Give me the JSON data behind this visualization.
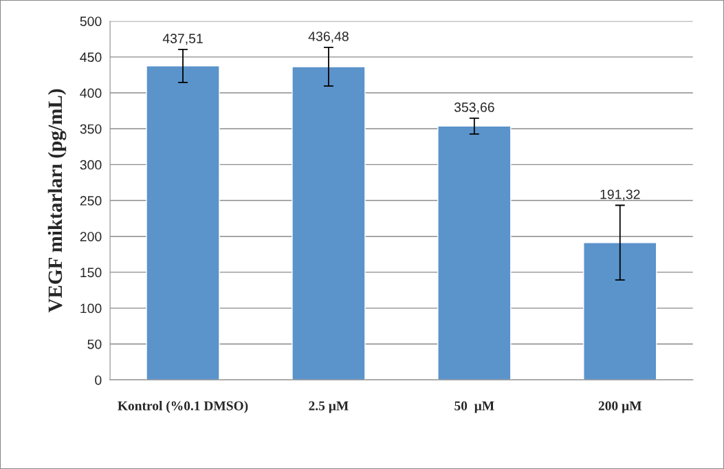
{
  "chart_data": {
    "type": "bar",
    "ylabel": "VEGF miktarları (pg/mL)",
    "categories": [
      "Kontrol (%0.1 DMSO)",
      "2.5 µM",
      "50  µM",
      "200 µM"
    ],
    "values": [
      437.51,
      436.48,
      353.66,
      191.32
    ],
    "errors": [
      23,
      27,
      11,
      52
    ],
    "value_labels": [
      "437,51",
      "436,48",
      "353,66",
      "191,32"
    ],
    "color": "#5b93cb",
    "ylim": [
      0,
      500
    ],
    "yticks": [
      0,
      50,
      100,
      150,
      200,
      250,
      300,
      350,
      400,
      450,
      500
    ],
    "grid": "y"
  }
}
